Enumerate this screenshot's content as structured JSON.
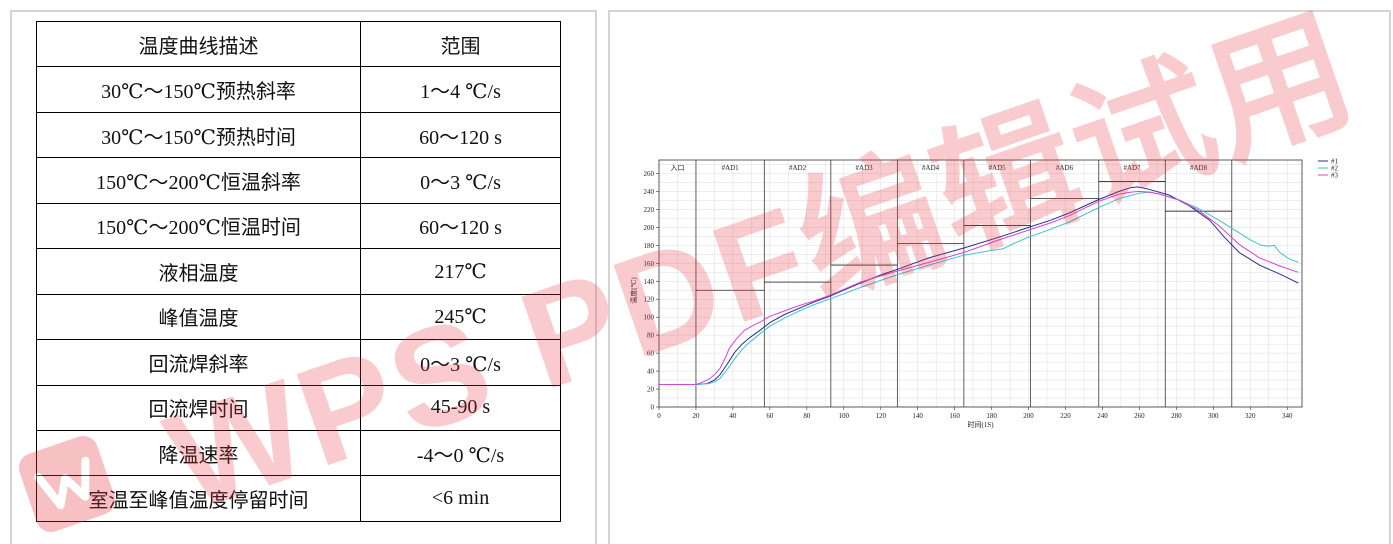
{
  "watermark": {
    "text": "WPS PDF编辑试用",
    "color": "#e8343f"
  },
  "table": {
    "headers": [
      "温度曲线描述",
      "范围"
    ],
    "rows": [
      {
        "item": "30℃～150℃预热斜率",
        "range": "1～4 ℃/s"
      },
      {
        "item": "30℃～150℃预热时间",
        "range": "60～120 s"
      },
      {
        "item": "150℃～200℃恒温斜率",
        "range": "0～3 ℃/s"
      },
      {
        "item": "150℃～200℃恒温时间",
        "range": "60～120 s"
      },
      {
        "item": "液相温度",
        "range": "217℃"
      },
      {
        "item": "峰值温度",
        "range": "245℃"
      },
      {
        "item": "回流焊斜率",
        "range": "0～3 ℃/s"
      },
      {
        "item": "回流焊时间",
        "range": "45-90 s"
      },
      {
        "item": "降温速率",
        "range": "-4～0 ℃/s"
      },
      {
        "item": "室温至峰值温度停留时间",
        "range": "<6 min"
      }
    ]
  },
  "chart_data": {
    "type": "line",
    "xlabel": "时间(1S)",
    "ylabel": "温度(℃)",
    "xlim": [
      0,
      348
    ],
    "ylim": [
      0,
      275
    ],
    "xticks": [
      0,
      20,
      40,
      60,
      80,
      100,
      120,
      140,
      160,
      180,
      200,
      220,
      240,
      260,
      280,
      300,
      320,
      340
    ],
    "yticks": [
      0,
      20,
      40,
      60,
      80,
      100,
      120,
      140,
      160,
      180,
      200,
      220,
      240,
      260
    ],
    "grid": true,
    "legend": "top-right",
    "zones": [
      {
        "label": "入口",
        "start": 0,
        "end": 20,
        "level": null
      },
      {
        "label": "#AD1",
        "start": 20,
        "end": 57,
        "level": 130
      },
      {
        "label": "#AD2",
        "start": 57,
        "end": 93,
        "level": 139
      },
      {
        "label": "#AD3",
        "start": 93,
        "end": 129,
        "level": 158
      },
      {
        "label": "#AD4",
        "start": 129,
        "end": 165,
        "level": 182
      },
      {
        "label": "#AD5",
        "start": 165,
        "end": 201,
        "level": 202
      },
      {
        "label": "#AD6",
        "start": 201,
        "end": 238,
        "level": 232
      },
      {
        "label": "#AD7",
        "start": 238,
        "end": 274,
        "level": 251
      },
      {
        "label": "#AD8",
        "start": 274,
        "end": 310,
        "level": 218
      }
    ],
    "series": [
      {
        "name": "#1",
        "color": "#2a2f8f",
        "points": [
          [
            0,
            25
          ],
          [
            20,
            25
          ],
          [
            26,
            26
          ],
          [
            30,
            30
          ],
          [
            33,
            36
          ],
          [
            37,
            48
          ],
          [
            41,
            61
          ],
          [
            45,
            70
          ],
          [
            49,
            77
          ],
          [
            55,
            86
          ],
          [
            60,
            94
          ],
          [
            68,
            103
          ],
          [
            76,
            110
          ],
          [
            84,
            117
          ],
          [
            92,
            123
          ],
          [
            100,
            130
          ],
          [
            109,
            138
          ],
          [
            120,
            147
          ],
          [
            130,
            154
          ],
          [
            146,
            166
          ],
          [
            165,
            177
          ],
          [
            184,
            189
          ],
          [
            200,
            200
          ],
          [
            212,
            208
          ],
          [
            222,
            216
          ],
          [
            238,
            231
          ],
          [
            249,
            240
          ],
          [
            255,
            244
          ],
          [
            259,
            245
          ],
          [
            264,
            243
          ],
          [
            276,
            236
          ],
          [
            287,
            224
          ],
          [
            298,
            208
          ],
          [
            306,
            189
          ],
          [
            314,
            172
          ],
          [
            325,
            158
          ],
          [
            336,
            148
          ],
          [
            346,
            138
          ]
        ]
      },
      {
        "name": "#2",
        "color": "#3cc4cc",
        "points": [
          [
            0,
            25
          ],
          [
            20,
            25
          ],
          [
            27,
            26
          ],
          [
            30,
            28
          ],
          [
            33,
            32
          ],
          [
            37,
            42
          ],
          [
            41,
            54
          ],
          [
            45,
            64
          ],
          [
            49,
            72
          ],
          [
            55,
            82
          ],
          [
            60,
            90
          ],
          [
            68,
            99
          ],
          [
            76,
            107
          ],
          [
            84,
            114
          ],
          [
            92,
            120
          ],
          [
            100,
            126
          ],
          [
            109,
            133
          ],
          [
            120,
            141
          ],
          [
            130,
            148
          ],
          [
            146,
            158
          ],
          [
            165,
            169
          ],
          [
            179,
            174
          ],
          [
            186,
            176
          ],
          [
            192,
            182
          ],
          [
            200,
            189
          ],
          [
            212,
            198
          ],
          [
            222,
            206
          ],
          [
            238,
            222
          ],
          [
            249,
            232
          ],
          [
            260,
            238
          ],
          [
            265,
            239
          ],
          [
            271,
            237
          ],
          [
            282,
            230
          ],
          [
            292,
            221
          ],
          [
            303,
            208
          ],
          [
            314,
            194
          ],
          [
            320,
            186
          ],
          [
            326,
            180
          ],
          [
            330,
            179
          ],
          [
            333,
            180
          ],
          [
            336,
            172
          ],
          [
            341,
            165
          ],
          [
            346,
            161
          ]
        ]
      },
      {
        "name": "#3",
        "color": "#d646d6",
        "points": [
          [
            0,
            25
          ],
          [
            20,
            25
          ],
          [
            23,
            27
          ],
          [
            27,
            31
          ],
          [
            30,
            36
          ],
          [
            33,
            43
          ],
          [
            36,
            55
          ],
          [
            38,
            65
          ],
          [
            42,
            76
          ],
          [
            46,
            85
          ],
          [
            51,
            91
          ],
          [
            55,
            95
          ],
          [
            60,
            101
          ],
          [
            68,
            107
          ],
          [
            76,
            113
          ],
          [
            84,
            118
          ],
          [
            92,
            124
          ],
          [
            100,
            131
          ],
          [
            109,
            139
          ],
          [
            120,
            146
          ],
          [
            130,
            152
          ],
          [
            146,
            161
          ],
          [
            165,
            172
          ],
          [
            184,
            186
          ],
          [
            200,
            197
          ],
          [
            212,
            205
          ],
          [
            222,
            213
          ],
          [
            238,
            229
          ],
          [
            249,
            237
          ],
          [
            255,
            239
          ],
          [
            260,
            240
          ],
          [
            266,
            239
          ],
          [
            271,
            237
          ],
          [
            282,
            230
          ],
          [
            292,
            219
          ],
          [
            303,
            202
          ],
          [
            314,
            181
          ],
          [
            325,
            166
          ],
          [
            336,
            157
          ],
          [
            346,
            150
          ]
        ]
      }
    ]
  }
}
